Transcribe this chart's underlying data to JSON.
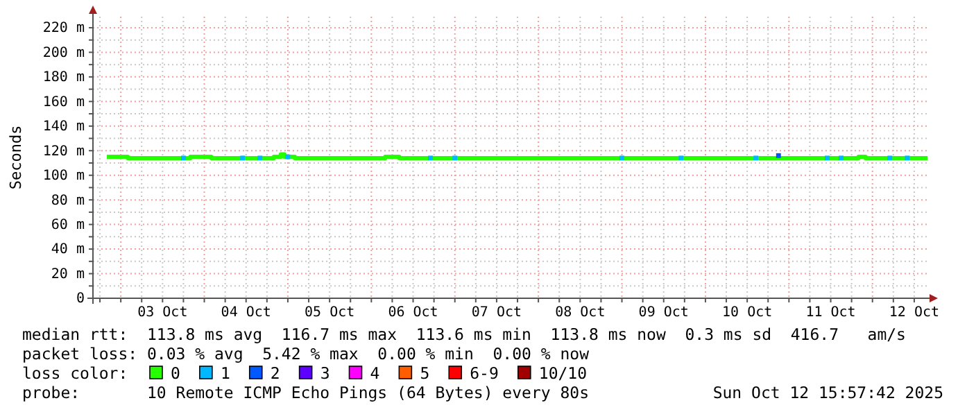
{
  "chart_data": {
    "type": "step",
    "ylabel": "Seconds",
    "legend_title": "loss color:",
    "legend": "bottom",
    "grid": true,
    "marker": "none",
    "xlim": [
      "2025-10-02T16:00",
      "2025-10-12T16:00"
    ],
    "xticks": [
      {
        "value": "2025-10-02T18:00",
        "label": null
      },
      {
        "value": "2025-10-03T00:00",
        "label": null
      },
      {
        "value": "2025-10-03T06:00",
        "label": null
      },
      {
        "value": "2025-10-03T12:00",
        "label": "03 Oct"
      },
      {
        "value": "2025-10-03T18:00",
        "label": null
      },
      {
        "value": "2025-10-04T00:00",
        "label": null
      },
      {
        "value": "2025-10-04T06:00",
        "label": null
      },
      {
        "value": "2025-10-04T12:00",
        "label": "04 Oct"
      },
      {
        "value": "2025-10-04T18:00",
        "label": null
      },
      {
        "value": "2025-10-05T00:00",
        "label": null
      },
      {
        "value": "2025-10-05T06:00",
        "label": null
      },
      {
        "value": "2025-10-05T12:00",
        "label": "05 Oct"
      },
      {
        "value": "2025-10-05T18:00",
        "label": null
      },
      {
        "value": "2025-10-06T00:00",
        "label": null
      },
      {
        "value": "2025-10-06T06:00",
        "label": null
      },
      {
        "value": "2025-10-06T12:00",
        "label": "06 Oct"
      },
      {
        "value": "2025-10-06T18:00",
        "label": null
      },
      {
        "value": "2025-10-07T00:00",
        "label": null
      },
      {
        "value": "2025-10-07T06:00",
        "label": null
      },
      {
        "value": "2025-10-07T12:00",
        "label": "07 Oct"
      },
      {
        "value": "2025-10-07T18:00",
        "label": null
      },
      {
        "value": "2025-10-08T00:00",
        "label": null
      },
      {
        "value": "2025-10-08T06:00",
        "label": null
      },
      {
        "value": "2025-10-08T12:00",
        "label": "08 Oct"
      },
      {
        "value": "2025-10-08T18:00",
        "label": null
      },
      {
        "value": "2025-10-09T00:00",
        "label": null
      },
      {
        "value": "2025-10-09T06:00",
        "label": null
      },
      {
        "value": "2025-10-09T12:00",
        "label": "09 Oct"
      },
      {
        "value": "2025-10-09T18:00",
        "label": null
      },
      {
        "value": "2025-10-10T00:00",
        "label": null
      },
      {
        "value": "2025-10-10T06:00",
        "label": null
      },
      {
        "value": "2025-10-10T12:00",
        "label": "10 Oct"
      },
      {
        "value": "2025-10-10T18:00",
        "label": null
      },
      {
        "value": "2025-10-11T00:00",
        "label": null
      },
      {
        "value": "2025-10-11T06:00",
        "label": null
      },
      {
        "value": "2025-10-11T12:00",
        "label": "11 Oct"
      },
      {
        "value": "2025-10-11T18:00",
        "label": null
      },
      {
        "value": "2025-10-12T00:00",
        "label": null
      },
      {
        "value": "2025-10-12T06:00",
        "label": null
      },
      {
        "value": "2025-10-12T12:00",
        "label": "12 Oct"
      }
    ],
    "ylim": [
      0,
      229
    ],
    "yticks": [
      0,
      {
        "value": 10,
        "label": null
      },
      {
        "value": 20,
        "label": "20 m"
      },
      {
        "value": 30,
        "label": null
      },
      {
        "value": 40,
        "label": "40 m"
      },
      {
        "value": 50,
        "label": null
      },
      {
        "value": 60,
        "label": "60 m"
      },
      {
        "value": 70,
        "label": null
      },
      {
        "value": 80,
        "label": "80 m"
      },
      {
        "value": 90,
        "label": null
      },
      {
        "value": 100,
        "label": "100 m"
      },
      {
        "value": 110,
        "label": null
      },
      {
        "value": 120,
        "label": "120 m"
      },
      {
        "value": 130,
        "label": null
      },
      {
        "value": 140,
        "label": "140 m"
      },
      {
        "value": 150,
        "label": null
      },
      {
        "value": 160,
        "label": "160 m"
      },
      {
        "value": 170,
        "label": null
      },
      {
        "value": 180,
        "label": "180 m"
      },
      {
        "value": 190,
        "label": null
      },
      {
        "value": 200,
        "label": "200 m"
      },
      {
        "value": 210,
        "label": null
      },
      {
        "value": 220,
        "label": "220 m"
      }
    ],
    "series": [
      {
        "name": "0",
        "color": "#26ff00",
        "x": [
          "2025-10-02T20:00",
          "2025-10-03T02:00",
          "2025-10-03T20:00",
          "2025-10-04T02:00",
          "2025-10-04T20:00",
          "2025-10-04T22:00",
          "2025-10-04T23:00",
          "2025-10-05T01:00",
          "2025-10-05T02:00",
          "2025-10-06T04:00",
          "2025-10-06T08:00",
          "2025-10-11T20:00",
          "2025-10-11T22:00",
          "2025-10-12T15:50"
        ],
        "values": [
          115,
          114,
          115,
          114,
          115,
          117,
          115,
          115,
          114,
          115,
          114,
          115,
          114,
          114
        ]
      },
      {
        "name": "1",
        "type": "scatter",
        "marker": "square",
        "color": "#00b8ff",
        "x": [
          "2025-10-03T18:00",
          "2025-10-04T11:00",
          "2025-10-04T16:00",
          "2025-10-05T00:00",
          "2025-10-06T17:00",
          "2025-10-07T00:00",
          "2025-10-09T00:00",
          "2025-10-09T17:00",
          "2025-10-10T14:30",
          "2025-10-11T11:00",
          "2025-10-11T15:00",
          "2025-10-12T05:00",
          "2025-10-12T10:00"
        ],
        "values": [
          114,
          114,
          114,
          115,
          114,
          114,
          114,
          114,
          114,
          114,
          114,
          114,
          114
        ]
      },
      {
        "name": "2",
        "type": "scatter",
        "marker": "square",
        "color": "#0059ff",
        "x": [
          "2025-10-10T21:00"
        ],
        "values": [
          116
        ]
      },
      {
        "name": "3",
        "type": "scatter",
        "marker": "square",
        "color": "#5e00ff"
      },
      {
        "name": "4",
        "type": "scatter",
        "marker": "square",
        "color": "#ff00ff"
      },
      {
        "name": "5",
        "type": "scatter",
        "marker": "square",
        "color": "#ff5e00"
      },
      {
        "name": "6-9",
        "type": "scatter",
        "marker": "square",
        "color": "#ff0000"
      },
      {
        "name": "10/10",
        "type": "scatter",
        "marker": "square",
        "color": "#a10000"
      }
    ],
    "annotations": [
      "median rtt:  113.8 ms avg  116.7 ms max  113.6 ms min  113.8 ms now  0.3 ms sd  416.7   am/s",
      "packet loss: 0.03 % avg  5.42 % max  0.00 % min  0.00 % now",
      "probe:       10 Remote ICMP Echo Pings (64 Bytes) every 80s",
      "Sun Oct 12 15:57:42 2025"
    ]
  }
}
